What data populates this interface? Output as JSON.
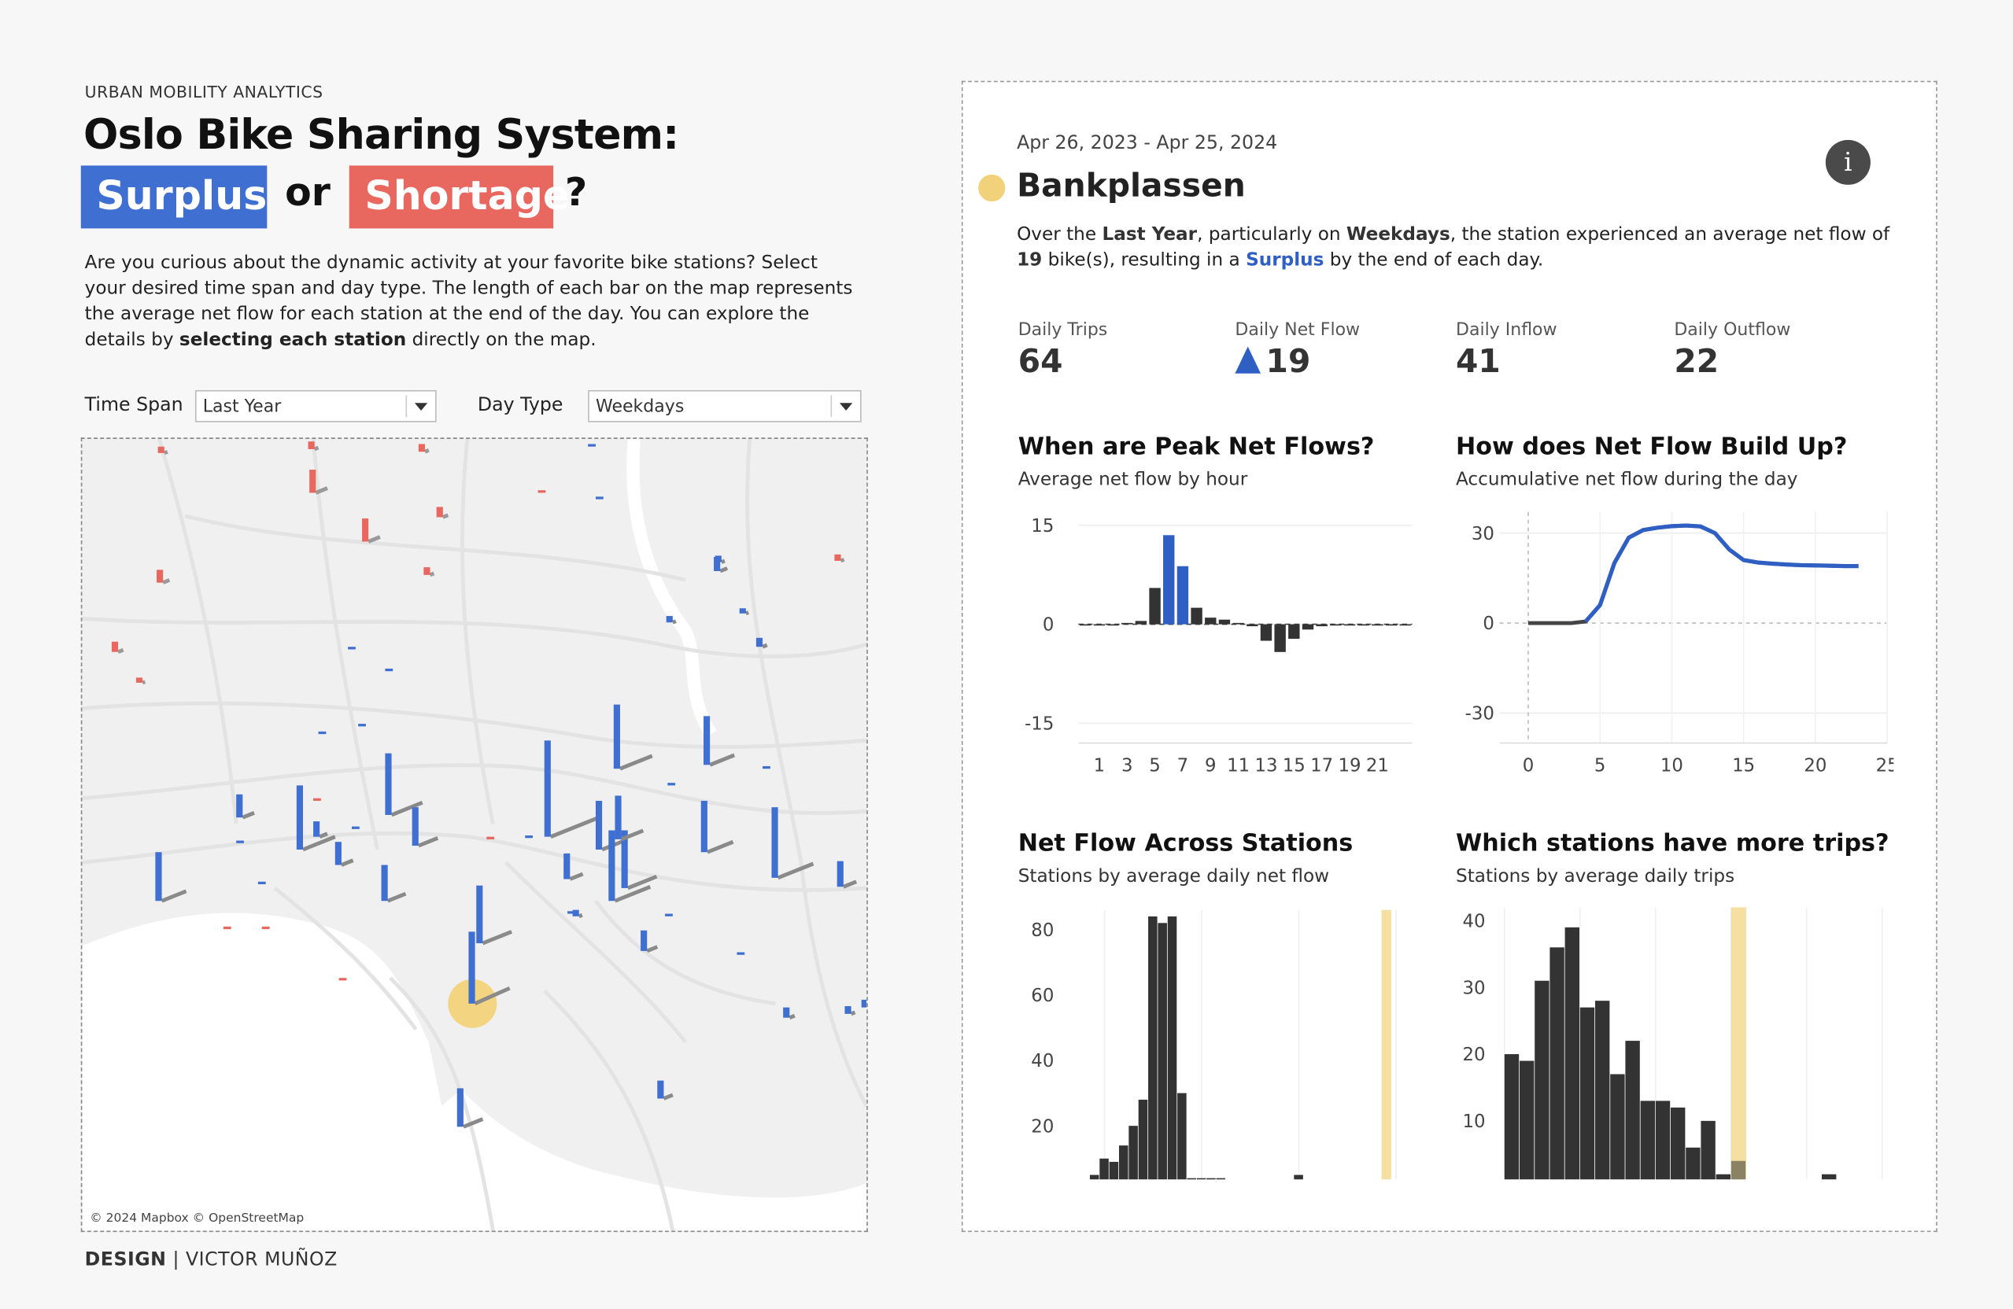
{
  "header": {
    "eyebrow": "URBAN MOBILITY ANALYTICS",
    "title_line1": "Oslo Bike Sharing System:",
    "surplus_tag": "Surplus",
    "or_word": "or",
    "shortage_tag": "Shortage",
    "question_mark": "?",
    "intro_part1": "Are you curious about the dynamic activity at your favorite bike stations? Select your desired time span and day type. The length of each bar on the map represents the average net flow for each station at the end of the day. You can explore the details by ",
    "intro_bold": "selecting each station",
    "intro_part2": " directly on the map."
  },
  "filters": {
    "time_span_label": "Time Span",
    "time_span_value": "Last Year",
    "day_type_label": "Day Type",
    "day_type_value": "Weekdays"
  },
  "map": {
    "credit": "© 2024 Mapbox © OpenStreetMap",
    "surplus_color": "#3f6fd1",
    "shortage_color": "#e8675f",
    "selected_color": "#f1d27a"
  },
  "footer": {
    "design_label": "DESIGN",
    "separator": " | ",
    "author": "VICTOR MUÑOZ"
  },
  "detail": {
    "date_range": "Apr 26, 2023 - Apr 25, 2024",
    "info_icon": "i",
    "station_name": "Bankplassen",
    "summary": {
      "p1": "Over the ",
      "span": "Last Year",
      "p2": ", particularly on ",
      "daytype": "Weekdays",
      "p3": ", the station experienced an average net flow of ",
      "netflow": "19",
      "p4": " bike(s), resulting in a ",
      "state": "Surplus",
      "p5": " by the end of each day."
    },
    "kpis": [
      {
        "label": "Daily Trips",
        "value": "64"
      },
      {
        "label": "Daily Net Flow",
        "value": "19"
      },
      {
        "label": "Daily Inflow",
        "value": "41"
      },
      {
        "label": "Daily Outflow",
        "value": "22"
      }
    ]
  },
  "charts": {
    "peak": {
      "title": "When are Peak Net Flows?",
      "subtitle": "Average net flow by hour"
    },
    "buildup": {
      "title": "How does Net Flow Build Up?",
      "subtitle": "Accumulative net flow during the day"
    },
    "across": {
      "title": "Net Flow Across Stations",
      "subtitle": "Stations by average daily net flow"
    },
    "trips": {
      "title": "Which stations have more trips?",
      "subtitle": "Stations by average daily trips"
    }
  },
  "chart_data": [
    {
      "type": "bar",
      "title": "When are Peak Net Flows?",
      "subtitle": "Average net flow by hour",
      "categories": [
        0,
        1,
        2,
        3,
        4,
        5,
        6,
        7,
        8,
        9,
        10,
        11,
        12,
        13,
        14,
        15,
        16,
        17,
        18,
        19,
        20,
        21,
        22,
        23
      ],
      "values": [
        0,
        0,
        0,
        0.2,
        0.5,
        5.5,
        13.5,
        8.8,
        2.5,
        1,
        0.7,
        0.2,
        -0.3,
        -2.5,
        -4.2,
        -2.2,
        -0.8,
        -0.3,
        -0.1,
        -0.1,
        -0.1,
        -0.1,
        -0.1,
        -0.1
      ],
      "highlight": [
        6,
        7
      ],
      "highlight_color": "#2f5fc2",
      "base_color": "#333333",
      "ylim": [
        -18,
        17
      ],
      "yticks": [
        -15,
        0,
        15
      ],
      "xticks": [
        1,
        3,
        5,
        7,
        9,
        11,
        13,
        15,
        17,
        19,
        21
      ]
    },
    {
      "type": "line",
      "title": "How does Net Flow Build Up?",
      "subtitle": "Accumulative net flow during the day",
      "x": [
        0,
        1,
        2,
        3,
        4,
        5,
        6,
        7,
        8,
        9,
        10,
        11,
        12,
        13,
        14,
        15,
        16,
        17,
        18,
        19,
        20,
        21,
        22,
        23
      ],
      "y": [
        0,
        0,
        0,
        0,
        0.5,
        6,
        20,
        28.5,
        31,
        31.8,
        32.3,
        32.5,
        32.2,
        30,
        24.5,
        21,
        20.2,
        19.8,
        19.5,
        19.3,
        19.2,
        19.1,
        19,
        19
      ],
      "line_color": "#2f5fc2",
      "xlim": [
        -2,
        25
      ],
      "ylim": [
        -40,
        37
      ],
      "xticks": [
        0,
        5,
        10,
        15,
        20,
        25
      ],
      "yticks": [
        -30,
        0,
        30
      ]
    },
    {
      "type": "bar",
      "title": "Net Flow Across Stations",
      "subtitle": "Stations by average daily net flow",
      "x": [
        -13,
        -12,
        -11,
        -10,
        -9,
        -8,
        -7,
        -6,
        -5,
        -4,
        -3,
        -2,
        -1,
        0,
        1,
        2,
        3,
        4,
        5,
        6,
        7,
        8,
        9,
        10,
        11,
        12,
        13,
        14,
        15,
        16,
        17,
        18,
        19,
        20
      ],
      "values": [
        2,
        2,
        5,
        10,
        9,
        14,
        20,
        28,
        84,
        82,
        84,
        30,
        4,
        4,
        4,
        4,
        0,
        0,
        1,
        0,
        0,
        1,
        1,
        5,
        1,
        1,
        1,
        1,
        0,
        0,
        0,
        0,
        0,
        1
      ],
      "highlight_x": 19,
      "highlight_color": "#f1d27a",
      "xticks": [
        -10,
        0,
        10,
        20
      ],
      "yticks": [
        0,
        20,
        40,
        60,
        80
      ],
      "ylim": [
        -5,
        86
      ]
    },
    {
      "type": "bar",
      "title": "Which stations have more trips?",
      "subtitle": "Stations by average daily trips",
      "x": [
        2,
        6,
        10,
        14,
        18,
        22,
        26,
        30,
        34,
        38,
        42,
        46,
        50,
        54,
        58,
        62,
        66,
        70,
        74,
        78,
        82,
        86,
        90,
        94,
        98
      ],
      "values": [
        20,
        19,
        31,
        36,
        39,
        27,
        28,
        17,
        22,
        13,
        13,
        12,
        6,
        10,
        2,
        4,
        1,
        0,
        0,
        0,
        1,
        2,
        1,
        0,
        1
      ],
      "highlight_x": 62,
      "highlight_color": "#f1d27a",
      "xticks": [
        0,
        20,
        40,
        60,
        80,
        100
      ],
      "yticks": [
        0,
        10,
        20,
        30,
        40
      ],
      "ylim": [
        -3,
        42
      ]
    }
  ]
}
